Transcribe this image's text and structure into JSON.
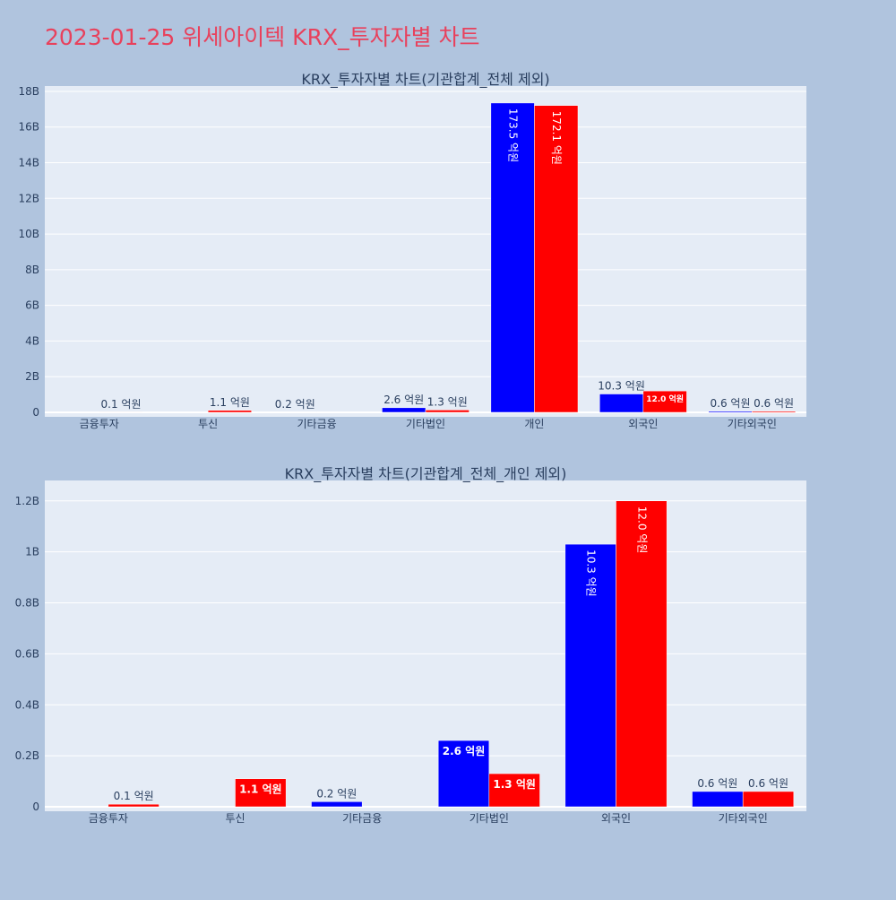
{
  "page": {
    "title": "2023-01-25 위세아이텍 KRX_투자자별 차트",
    "title_color": "#e8415c",
    "background": "#b0c4de",
    "plot_background": "#e5ecf6"
  },
  "chart_data": [
    {
      "type": "bar",
      "title": "KRX_투자자별 차트(기관합계_전체 제외)",
      "categories": [
        "금융투자",
        "투신",
        "기타금융",
        "기타법인",
        "개인",
        "외국인",
        "기타외국인"
      ],
      "series": [
        {
          "color": "#0000ff",
          "values": [
            0,
            0,
            20000000,
            260000000,
            17350000000,
            1030000000,
            60000000
          ],
          "labels": [
            "",
            "",
            "",
            "2.6 억원",
            "173.5 억원",
            "10.3 억원",
            "0.6 억원"
          ]
        },
        {
          "color": "#ff0000",
          "values": [
            10000000,
            110000000,
            0,
            130000000,
            17210000000,
            1200000000,
            60000000
          ],
          "labels": [
            "0.1 억원",
            "1.1 억원",
            "",
            "1.3 억원",
            "172.1 억원",
            "12.0 억원",
            "0.6 억원"
          ]
        }
      ],
      "extra_labels": [
        {
          "category_index": 2,
          "text": "0.2 억원"
        }
      ],
      "ylim": [
        0,
        18300000000
      ],
      "yticks": [
        0,
        2000000000,
        4000000000,
        6000000000,
        8000000000,
        10000000000,
        12000000000,
        14000000000,
        16000000000,
        18000000000
      ],
      "ytick_labels": [
        "0",
        "2B",
        "4B",
        "6B",
        "8B",
        "10B",
        "12B",
        "14B",
        "16B",
        "18B"
      ],
      "grid": true,
      "xlabel": "",
      "ylabel": ""
    },
    {
      "type": "bar",
      "title": "KRX_투자자별 차트(기관합계_전체_개인 제외)",
      "categories": [
        "금융투자",
        "투신",
        "기타금융",
        "기타법인",
        "외국인",
        "기타외국인"
      ],
      "series": [
        {
          "color": "#0000ff",
          "values": [
            0,
            0,
            20000000,
            260000000,
            1030000000,
            60000000
          ],
          "labels": [
            "",
            "",
            "0.2 억원",
            "2.6 억원",
            "10.3 억원",
            "0.6 억원"
          ]
        },
        {
          "color": "#ff0000",
          "values": [
            10000000,
            110000000,
            0,
            130000000,
            1200000000,
            60000000
          ],
          "labels": [
            "0.1 억원",
            "1.1 억원",
            "",
            "1.3 억원",
            "12.0 억원",
            "0.6 억원"
          ]
        }
      ],
      "extra_labels": [],
      "ylim": [
        0,
        1280000000
      ],
      "yticks": [
        0,
        200000000,
        400000000,
        600000000,
        800000000,
        1000000000,
        1200000000
      ],
      "ytick_labels": [
        "0",
        "0.2B",
        "0.4B",
        "0.6B",
        "0.8B",
        "1B",
        "1.2B"
      ],
      "grid": true,
      "xlabel": "",
      "ylabel": ""
    }
  ]
}
